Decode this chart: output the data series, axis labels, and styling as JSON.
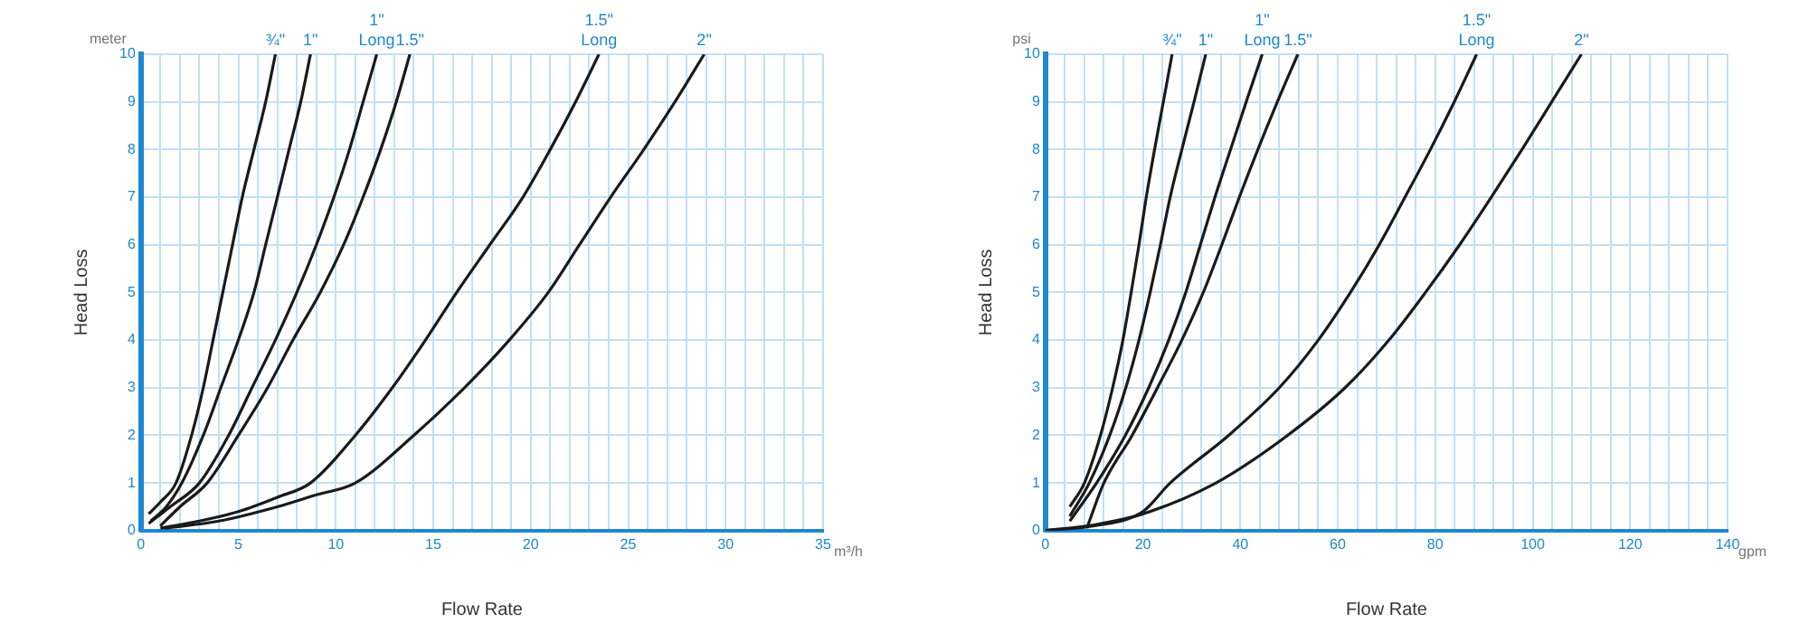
{
  "chart_data": [
    {
      "type": "line",
      "xlabel": "Flow Rate",
      "ylabel": "Head Loss",
      "annotations": [
        "meter",
        "m³/h"
      ],
      "grid": true,
      "marker": "none",
      "line_style": "solid",
      "xlim": [
        0,
        35
      ],
      "ylim": [
        0,
        10
      ],
      "xticks": [
        0,
        {
          "value": 1,
          "label": null
        },
        {
          "value": 2,
          "label": null
        },
        {
          "value": 3,
          "label": null
        },
        {
          "value": 4,
          "label": null
        },
        5,
        {
          "value": 6,
          "label": null
        },
        {
          "value": 7,
          "label": null
        },
        {
          "value": 8,
          "label": null
        },
        {
          "value": 9,
          "label": null
        },
        10,
        {
          "value": 11,
          "label": null
        },
        {
          "value": 12,
          "label": null
        },
        {
          "value": 13,
          "label": null
        },
        {
          "value": 14,
          "label": null
        },
        15,
        {
          "value": 16,
          "label": null
        },
        {
          "value": 17,
          "label": null
        },
        {
          "value": 18,
          "label": null
        },
        {
          "value": 19,
          "label": null
        },
        20,
        {
          "value": 21,
          "label": null
        },
        {
          "value": 22,
          "label": null
        },
        {
          "value": 23,
          "label": null
        },
        {
          "value": 24,
          "label": null
        },
        25,
        {
          "value": 26,
          "label": null
        },
        {
          "value": 27,
          "label": null
        },
        {
          "value": 28,
          "label": null
        },
        {
          "value": 29,
          "label": null
        },
        30,
        {
          "value": 31,
          "label": null
        },
        {
          "value": 32,
          "label": null
        },
        {
          "value": 33,
          "label": null
        },
        {
          "value": 34,
          "label": null
        },
        35
      ],
      "yticks": [
        0,
        1,
        2,
        3,
        4,
        5,
        6,
        7,
        8,
        9,
        10
      ],
      "series": [
        {
          "name": "¾\"",
          "color": "#1a1a1a",
          "x": [
            0.4,
            1,
            1.8,
            2.6,
            3.2,
            3.7,
            4.2,
            4.7,
            5.2,
            5.8,
            6.4,
            6.9
          ],
          "values": [
            0.35,
            0.6,
            1,
            2,
            3,
            4,
            5,
            6,
            7,
            8,
            9,
            10
          ]
        },
        {
          "name": "1\"",
          "color": "#1a1a1a",
          "x": [
            0.5,
            1.3,
            2.1,
            3.2,
            4.1,
            5.0,
            5.8,
            6.4,
            7.0,
            7.6,
            8.2,
            8.7
          ],
          "values": [
            0.2,
            0.5,
            1,
            2,
            3,
            4,
            5,
            6,
            7,
            8,
            9,
            10
          ]
        },
        {
          "name": "1\" Long",
          "color": "#1a1a1a",
          "x": [
            0.4,
            1.5,
            3.0,
            4.5,
            5.7,
            6.9,
            8.0,
            9.0,
            9.9,
            10.7,
            11.4,
            12.1
          ],
          "values": [
            0.15,
            0.5,
            1,
            2,
            3,
            4,
            5,
            6,
            7,
            8,
            9,
            10
          ]
        },
        {
          "name": "1.5\"",
          "color": "#1a1a1a",
          "x": [
            1.0,
            2.0,
            3.4,
            5.0,
            6.5,
            7.8,
            9.2,
            10.4,
            11.4,
            12.3,
            13.1,
            13.8
          ],
          "values": [
            0.1,
            0.5,
            1,
            2,
            3,
            4,
            5,
            6,
            7,
            8,
            9,
            10
          ]
        },
        {
          "name": "1.5\" Long",
          "color": "#1a1a1a",
          "x": [
            1.0,
            3,
            5,
            7,
            8.7,
            11.0,
            12.9,
            14.6,
            16.2,
            17.9,
            19.6,
            21.0,
            22.3,
            23.5
          ],
          "values": [
            0.05,
            0.2,
            0.4,
            0.7,
            1,
            2,
            3,
            4,
            5,
            6,
            7,
            8,
            9,
            10
          ]
        },
        {
          "name": "2\"",
          "color": "#1a1a1a",
          "x": [
            1.2,
            4,
            7,
            9,
            11,
            14.0,
            16.6,
            18.9,
            20.9,
            22.5,
            24.1,
            25.8,
            27.4,
            28.9
          ],
          "values": [
            0.05,
            0.2,
            0.5,
            0.75,
            1,
            2,
            3,
            4,
            5,
            6,
            7,
            8,
            9,
            10
          ]
        }
      ]
    },
    {
      "type": "line",
      "xlabel": "Flow Rate",
      "ylabel": "Head Loss",
      "annotations": [
        "psi",
        "gpm"
      ],
      "grid": true,
      "marker": "none",
      "line_style": "solid",
      "xlim": [
        0,
        140
      ],
      "ylim": [
        0,
        10
      ],
      "xticks": [
        0,
        {
          "value": 4,
          "label": null
        },
        {
          "value": 8,
          "label": null
        },
        {
          "value": 12,
          "label": null
        },
        {
          "value": 16,
          "label": null
        },
        20,
        {
          "value": 24,
          "label": null
        },
        {
          "value": 28,
          "label": null
        },
        {
          "value": 32,
          "label": null
        },
        {
          "value": 36,
          "label": null
        },
        40,
        {
          "value": 44,
          "label": null
        },
        {
          "value": 48,
          "label": null
        },
        {
          "value": 52,
          "label": null
        },
        {
          "value": 56,
          "label": null
        },
        60,
        {
          "value": 64,
          "label": null
        },
        {
          "value": 68,
          "label": null
        },
        {
          "value": 72,
          "label": null
        },
        {
          "value": 76,
          "label": null
        },
        80,
        {
          "value": 84,
          "label": null
        },
        {
          "value": 88,
          "label": null
        },
        {
          "value": 92,
          "label": null
        },
        {
          "value": 96,
          "label": null
        },
        100,
        {
          "value": 104,
          "label": null
        },
        {
          "value": 108,
          "label": null
        },
        {
          "value": 112,
          "label": null
        },
        {
          "value": 116,
          "label": null
        },
        120,
        {
          "value": 124,
          "label": null
        },
        {
          "value": 128,
          "label": null
        },
        {
          "value": 132,
          "label": null
        },
        {
          "value": 136,
          "label": null
        },
        140
      ],
      "yticks": [
        0,
        1,
        2,
        3,
        4,
        5,
        6,
        7,
        8,
        9,
        10
      ],
      "series": [
        {
          "name": "¾\"",
          "color": "#1a1a1a",
          "x": [
            5,
            8,
            11.3,
            13.8,
            15.9,
            17.6,
            19.2,
            20.7,
            22.4,
            24.2,
            26.0
          ],
          "values": [
            0.5,
            1,
            2,
            3,
            4,
            5,
            6,
            7,
            8,
            9,
            10
          ]
        },
        {
          "name": "1\"",
          "color": "#1a1a1a",
          "x": [
            5,
            9,
            13.2,
            16.5,
            19.2,
            21.5,
            23.6,
            25.6,
            28.0,
            30.5,
            32.9
          ],
          "values": [
            0.3,
            1,
            2,
            3,
            4,
            5,
            6,
            7,
            8,
            9,
            10
          ]
        },
        {
          "name": "1\" Long",
          "color": "#1a1a1a",
          "x": [
            5,
            10.5,
            16.4,
            21.2,
            25.3,
            28.8,
            31.8,
            34.8,
            38.0,
            41.2,
            44.5
          ],
          "values": [
            0.2,
            1,
            2,
            3,
            4,
            5,
            6,
            7,
            8,
            9,
            10
          ]
        },
        {
          "name": "1.5\"",
          "color": "#1a1a1a",
          "x": [
            8.5,
            12,
            17.8,
            23,
            28,
            32.4,
            36.2,
            39.8,
            43.6,
            47.6,
            51.8
          ],
          "values": [
            0.05,
            1,
            2,
            3,
            4,
            5,
            6,
            7,
            8,
            9,
            10
          ]
        },
        {
          "name": "1.5\" Long",
          "color": "#1a1a1a",
          "x": [
            0,
            10,
            20,
            25.6,
            37.6,
            48.0,
            56.0,
            62.6,
            68.5,
            73.8,
            79.0,
            83.9,
            88.5
          ],
          "values": [
            0,
            0.1,
            0.4,
            1,
            2,
            3,
            4,
            5,
            6,
            7,
            8,
            9,
            10
          ]
        },
        {
          "name": "2\"",
          "color": "#1a1a1a",
          "x": [
            0,
            10,
            20,
            35.0,
            49.7,
            61.5,
            70.5,
            78.0,
            85.0,
            91.5,
            97.8,
            103.9,
            110.0
          ],
          "values": [
            0,
            0.12,
            0.35,
            1,
            2,
            3,
            4,
            5,
            6,
            7,
            8,
            9,
            10
          ]
        }
      ]
    }
  ]
}
